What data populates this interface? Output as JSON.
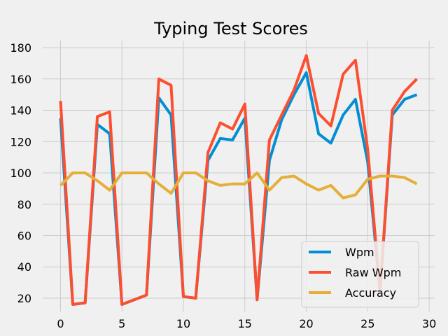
{
  "chart_data": {
    "type": "line",
    "title": "Typing Test Scores",
    "xlabel": "",
    "ylabel": "",
    "xlim": [
      -1.45,
      30.45
    ],
    "ylim": [
      11.5,
      184.5
    ],
    "xticks": [
      0,
      5,
      10,
      15,
      20,
      25,
      30
    ],
    "yticks": [
      20,
      40,
      60,
      80,
      100,
      120,
      140,
      160,
      180
    ],
    "grid": true,
    "legend_position": "lower right",
    "x": [
      0,
      1,
      2,
      3,
      4,
      5,
      6,
      7,
      8,
      9,
      10,
      11,
      12,
      13,
      14,
      15,
      16,
      17,
      18,
      19,
      20,
      21,
      22,
      23,
      24,
      25,
      26,
      27,
      28,
      29
    ],
    "series": [
      {
        "name": "Wpm",
        "color": "#008fd5",
        "values": [
          135,
          16,
          17,
          131,
          125,
          16,
          19,
          22,
          148,
          137,
          21,
          20,
          108,
          122,
          121,
          135,
          19,
          108,
          134,
          150,
          164,
          125,
          119,
          137,
          147,
          107,
          24,
          137,
          147,
          150
        ]
      },
      {
        "name": "Raw Wpm",
        "color": "#fc4f30",
        "values": [
          146,
          16,
          17,
          136,
          139,
          16,
          19,
          22,
          160,
          156,
          21,
          20,
          113,
          132,
          128,
          144,
          19,
          121,
          137,
          153,
          175,
          138,
          130,
          163,
          172,
          115,
          24,
          140,
          152,
          160
        ]
      },
      {
        "name": "Accuracy",
        "color": "#e5ae38",
        "values": [
          92,
          100,
          100,
          95,
          89,
          100,
          100,
          100,
          93,
          87,
          100,
          100,
          95,
          92,
          93,
          93,
          100,
          89,
          97,
          98,
          93,
          89,
          92,
          84,
          86,
          96,
          98,
          98,
          97,
          93
        ]
      }
    ]
  }
}
